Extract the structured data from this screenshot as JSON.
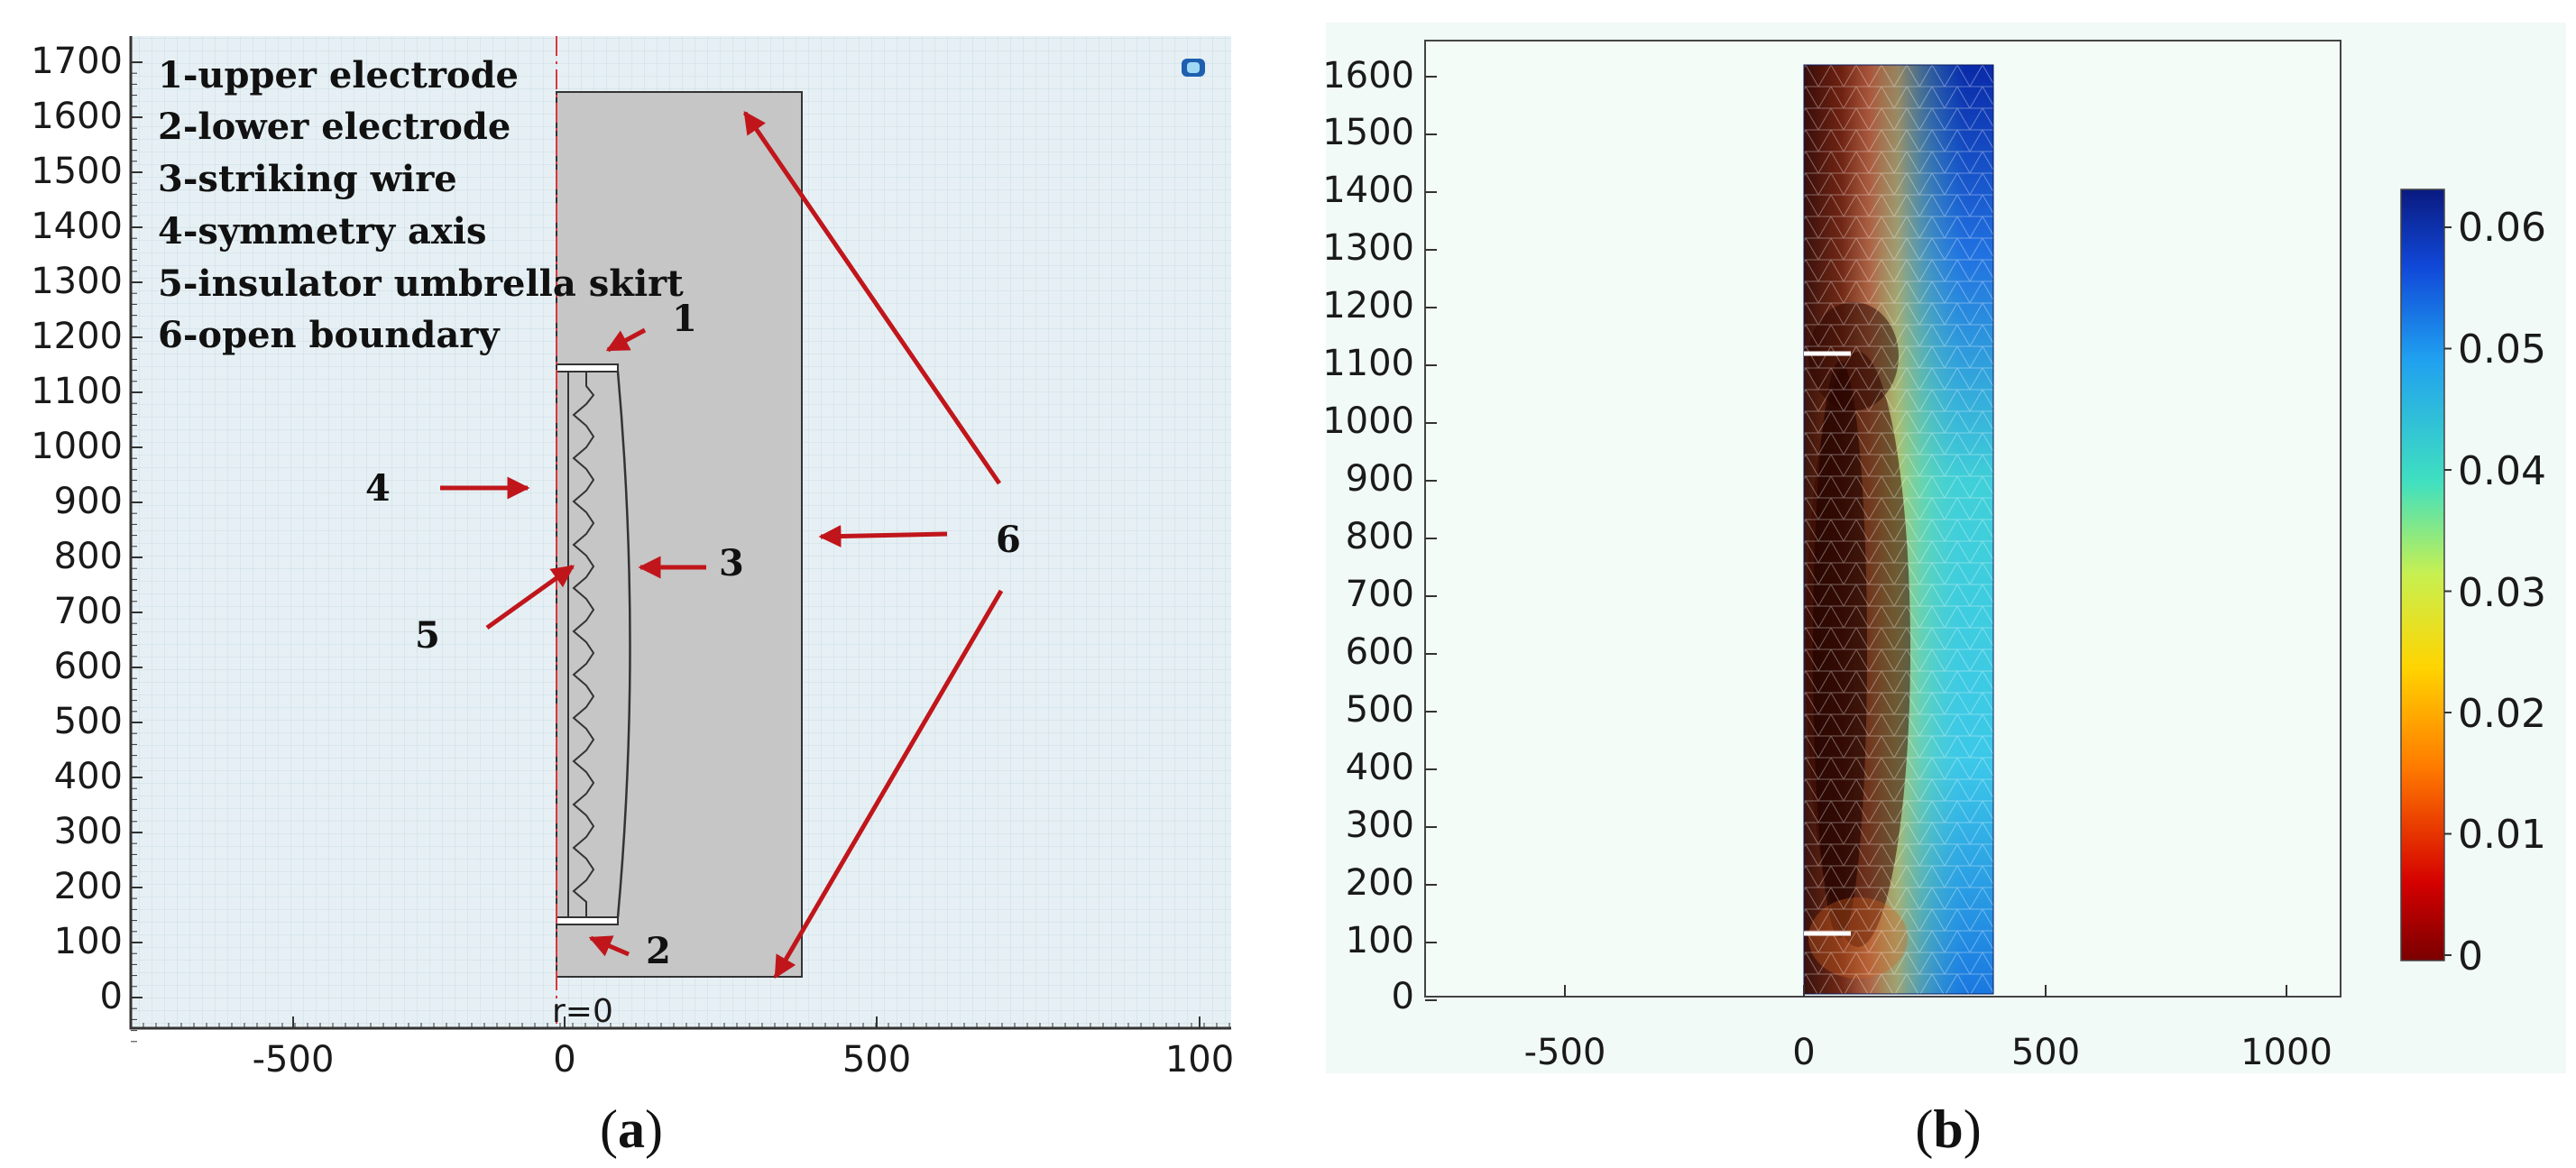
{
  "panel_a": {
    "legend": [
      "1-upper electrode",
      "2-lower electrode",
      "3-striking wire",
      "4-symmetry axis",
      "5-insulator umbrella skirt",
      "6-open boundary"
    ],
    "callouts": [
      "1",
      "2",
      "3",
      "4",
      "5",
      "6"
    ],
    "axis_label": "r=0",
    "y_ticks": [
      "1700",
      "1600",
      "1500",
      "1400",
      "1300",
      "1200",
      "1100",
      "1000",
      "900",
      "800",
      "700",
      "600",
      "500",
      "400",
      "300",
      "200",
      "100",
      "0"
    ],
    "x_ticks": [
      "-500",
      "0",
      "500",
      "100"
    ],
    "caption_letter": "a"
  },
  "panel_b": {
    "y_ticks": [
      "1600",
      "1500",
      "1400",
      "1300",
      "1200",
      "1100",
      "1000",
      "900",
      "800",
      "700",
      "600",
      "500",
      "400",
      "300",
      "200",
      "100",
      "0"
    ],
    "x_ticks": [
      "-500",
      "0",
      "500",
      "1000"
    ],
    "colorbar_ticks": [
      "0.06",
      "0.05",
      "0.04",
      "0.03",
      "0.02",
      "0.01",
      "0"
    ],
    "caption_letter": "b"
  },
  "colors": {
    "arrow": "#c0161b",
    "panel_a_bg": "#e6f0f4",
    "domain_fill": "#c6c6c6",
    "panel_b_bg": "#f1faf6"
  }
}
